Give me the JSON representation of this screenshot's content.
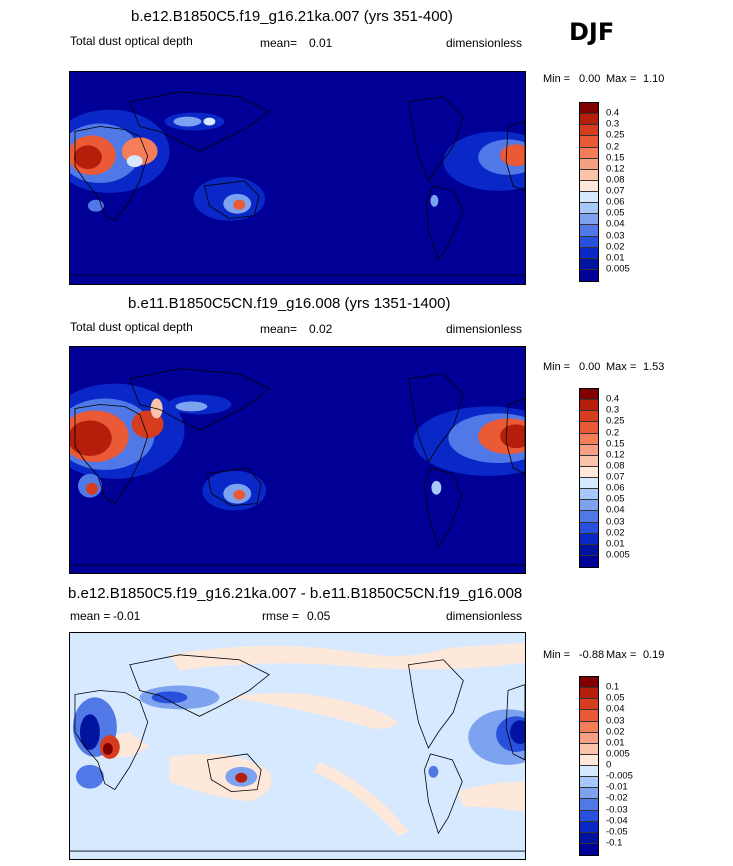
{
  "season": "DJF",
  "panels": [
    {
      "title": "b.e12.B1850C5.f19_g16.21ka.007 (yrs 351-400)",
      "left_label": "Total dust optical depth",
      "mean_label": "mean=",
      "mean_value": "0.01",
      "units": "dimensionless",
      "min_label": "Min =",
      "min_value": "0.00",
      "max_label": "Max =",
      "max_value": "1.10",
      "colorbar_labels": [
        "0.4",
        "0.3",
        "0.25",
        "0.2",
        "0.15",
        "0.12",
        "0.08",
        "0.07",
        "0.06",
        "0.05",
        "0.04",
        "0.03",
        "0.02",
        "0.01",
        "0.005"
      ]
    },
    {
      "title": "b.e11.B1850C5CN.f19_g16.008 (yrs 1351-1400)",
      "left_label": "Total dust optical depth",
      "mean_label": "mean=",
      "mean_value": "0.02",
      "units": "dimensionless",
      "min_label": "Min =",
      "min_value": "0.00",
      "max_label": "Max =",
      "max_value": "1.53",
      "colorbar_labels": [
        "0.4",
        "0.3",
        "0.25",
        "0.2",
        "0.15",
        "0.12",
        "0.08",
        "0.07",
        "0.06",
        "0.05",
        "0.04",
        "0.03",
        "0.02",
        "0.01",
        "0.005"
      ]
    },
    {
      "title": "b.e12.B1850C5.f19_g16.21ka.007 - b.e11.B1850C5CN.f19_g16.008",
      "left_label": "mean =",
      "mean_value": "-0.01",
      "rmse_label": "rmse =",
      "rmse_value": "0.05",
      "units": "dimensionless",
      "min_label": "Min =",
      "min_value": "-0.88",
      "max_label": "Max =",
      "max_value": "0.19",
      "colorbar_labels": [
        "0.1",
        "0.05",
        "0.04",
        "0.03",
        "0.02",
        "0.01",
        "0.005",
        "0",
        "-0.005",
        "-0.01",
        "-0.02",
        "-0.03",
        "-0.04",
        "-0.05",
        "-0.1"
      ]
    }
  ],
  "colors": {
    "abs_scale": [
      "#800000",
      "#b41e0a",
      "#d73c1e",
      "#eb5a37",
      "#f57d5a",
      "#f79f82",
      "#fac3aa",
      "#fde8da",
      "#d7e9ff",
      "#a8c8fa",
      "#7da2f0",
      "#5078e6",
      "#2850dc",
      "#0a28c8",
      "#0014a0",
      "#000096"
    ],
    "diff_scale": [
      "#800000",
      "#b41e0a",
      "#d73c1e",
      "#eb5a37",
      "#f57d5a",
      "#f79f82",
      "#fac3aa",
      "#fde8da",
      "#d7e9ff",
      "#a8c8fa",
      "#7da2f0",
      "#5078e6",
      "#2850dc",
      "#0a28c8",
      "#0014a0",
      "#000096"
    ],
    "abs_background": "#000096",
    "diff_background": "#d7e9ff"
  }
}
